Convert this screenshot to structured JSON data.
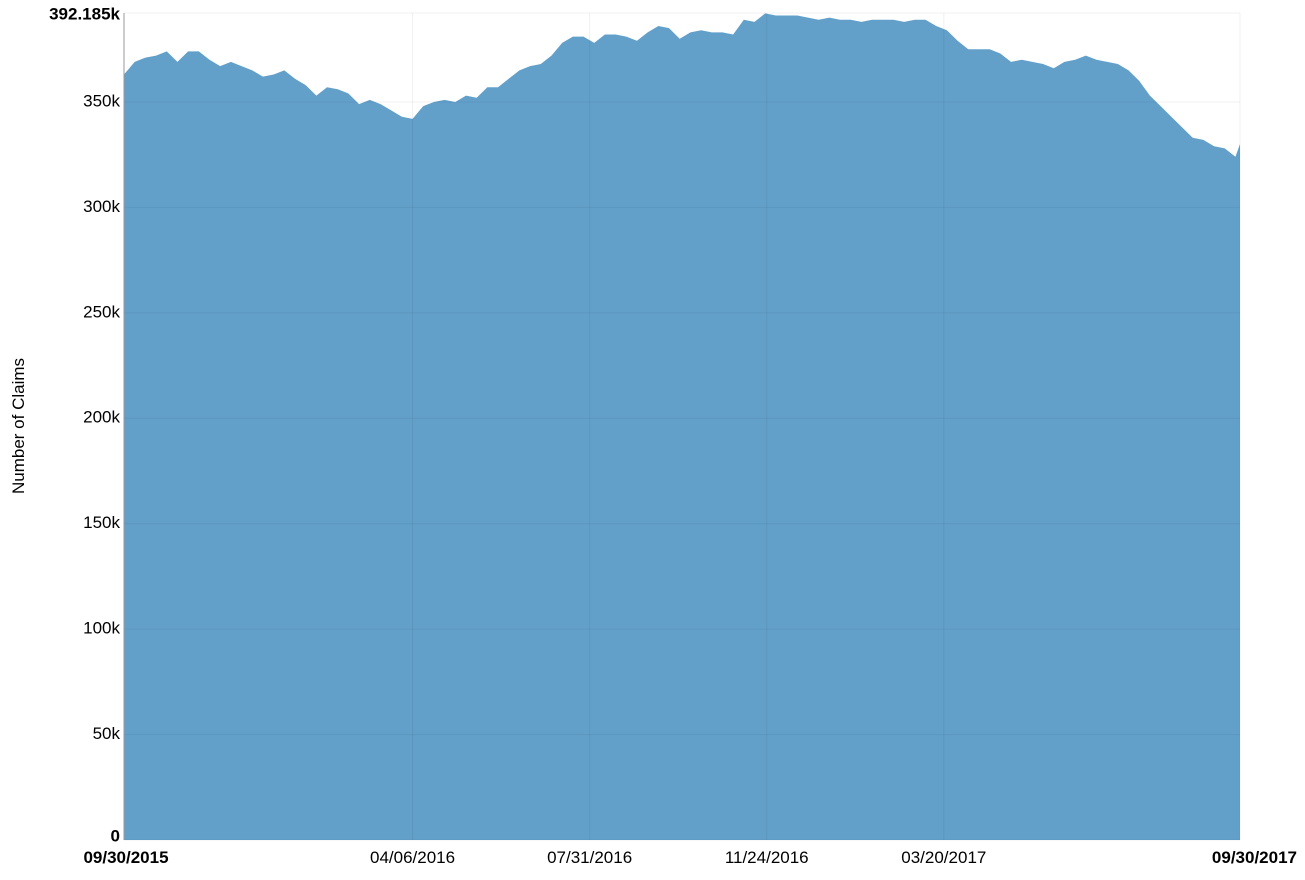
{
  "chart_data": {
    "type": "area",
    "y_label": "Number of Claims",
    "color": "#5f9ec9",
    "grid": true,
    "ylim": [
      0,
      392185
    ],
    "yticks": [
      0,
      {
        "value": 50000,
        "label": "50k"
      },
      {
        "value": 100000,
        "label": "100k"
      },
      {
        "value": 150000,
        "label": "150k"
      },
      {
        "value": 200000,
        "label": "200k"
      },
      {
        "value": 250000,
        "label": "250k"
      },
      {
        "value": 300000,
        "label": "300k"
      },
      {
        "value": 350000,
        "label": "350k"
      },
      {
        "value": 392185,
        "label": "392.185k"
      }
    ],
    "xlim": [
      "09/30/2015",
      "09/30/2017"
    ],
    "xticks": [
      "09/30/2015",
      "04/06/2016",
      "07/31/2016",
      "11/24/2016",
      "03/20/2017",
      "09/30/2017"
    ],
    "x": [
      "09/30/2015",
      "10/07/2015",
      "10/14/2015",
      "10/21/2015",
      "10/28/2015",
      "11/04/2015",
      "11/11/2015",
      "11/18/2015",
      "11/25/2015",
      "12/02/2015",
      "12/09/2015",
      "12/16/2015",
      "12/23/2015",
      "12/30/2015",
      "01/06/2016",
      "01/13/2016",
      "01/20/2016",
      "01/27/2016",
      "02/03/2016",
      "02/10/2016",
      "02/17/2016",
      "02/24/2016",
      "03/02/2016",
      "03/09/2016",
      "03/16/2016",
      "03/23/2016",
      "03/30/2016",
      "04/06/2016",
      "04/13/2016",
      "04/20/2016",
      "04/27/2016",
      "05/04/2016",
      "05/11/2016",
      "05/18/2016",
      "05/25/2016",
      "06/01/2016",
      "06/08/2016",
      "06/15/2016",
      "06/22/2016",
      "06/29/2016",
      "07/06/2016",
      "07/13/2016",
      "07/20/2016",
      "07/27/2016",
      "08/03/2016",
      "08/10/2016",
      "08/17/2016",
      "08/24/2016",
      "08/31/2016",
      "09/07/2016",
      "09/14/2016",
      "09/21/2016",
      "09/28/2016",
      "10/05/2016",
      "10/12/2016",
      "10/19/2016",
      "10/26/2016",
      "11/02/2016",
      "11/09/2016",
      "11/16/2016",
      "11/23/2016",
      "11/30/2016",
      "12/07/2016",
      "12/14/2016",
      "12/21/2016",
      "12/28/2016",
      "01/04/2017",
      "01/11/2017",
      "01/18/2017",
      "01/25/2017",
      "02/01/2017",
      "02/08/2017",
      "02/15/2017",
      "02/22/2017",
      "03/01/2017",
      "03/08/2017",
      "03/15/2017",
      "03/22/2017",
      "03/29/2017",
      "04/05/2017",
      "04/12/2017",
      "04/19/2017",
      "04/26/2017",
      "05/03/2017",
      "05/10/2017",
      "05/17/2017",
      "05/24/2017",
      "05/31/2017",
      "06/07/2017",
      "06/14/2017",
      "06/21/2017",
      "06/28/2017",
      "07/05/2017",
      "07/12/2017",
      "07/19/2017",
      "07/26/2017",
      "08/02/2017",
      "08/09/2017",
      "08/16/2017",
      "08/23/2017",
      "08/30/2017",
      "09/06/2017",
      "09/13/2017",
      "09/20/2017",
      "09/27/2017",
      "09/30/2017"
    ],
    "values": [
      363000,
      369000,
      371000,
      372000,
      374000,
      369000,
      374000,
      374000,
      370000,
      367000,
      369000,
      367000,
      365000,
      362000,
      363000,
      365000,
      361000,
      358000,
      353000,
      357000,
      356000,
      354000,
      349000,
      351000,
      349000,
      346000,
      343000,
      342000,
      348000,
      350000,
      351000,
      350000,
      353000,
      352000,
      357000,
      357000,
      361000,
      365000,
      367000,
      368000,
      372000,
      378000,
      381000,
      381000,
      378000,
      382000,
      382000,
      381000,
      379000,
      383000,
      386000,
      385000,
      380000,
      383000,
      384000,
      383000,
      383000,
      382000,
      389000,
      388000,
      392000,
      391000,
      391000,
      391000,
      390000,
      389000,
      390000,
      389000,
      389000,
      388000,
      389000,
      389000,
      389000,
      388000,
      389000,
      389000,
      386000,
      384000,
      379000,
      375000,
      375000,
      375000,
      373000,
      369000,
      370000,
      369000,
      368000,
      366000,
      369000,
      370000,
      372000,
      370000,
      369000,
      368000,
      365000,
      360000,
      353000,
      348000,
      343000,
      338000,
      333000,
      332000,
      329000,
      328000,
      324000,
      330000
    ]
  }
}
